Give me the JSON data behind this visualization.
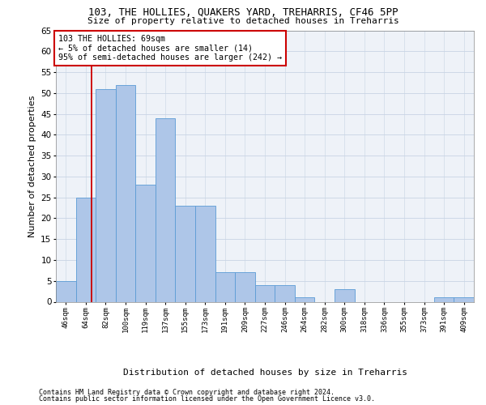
{
  "title1": "103, THE HOLLIES, QUAKERS YARD, TREHARRIS, CF46 5PP",
  "title2": "Size of property relative to detached houses in Treharris",
  "xlabel": "Distribution of detached houses by size in Treharris",
  "ylabel": "Number of detached properties",
  "categories": [
    "46sqm",
    "64sqm",
    "82sqm",
    "100sqm",
    "119sqm",
    "137sqm",
    "155sqm",
    "173sqm",
    "191sqm",
    "209sqm",
    "227sqm",
    "246sqm",
    "264sqm",
    "282sqm",
    "300sqm",
    "318sqm",
    "336sqm",
    "355sqm",
    "373sqm",
    "391sqm",
    "409sqm"
  ],
  "values": [
    5,
    25,
    51,
    52,
    28,
    44,
    23,
    23,
    7,
    7,
    4,
    4,
    1,
    0,
    3,
    0,
    0,
    0,
    0,
    1,
    1
  ],
  "bar_color": "#aec6e8",
  "bar_edge_color": "#5b9bd5",
  "annotation_label": "103 THE HOLLIES: 69sqm",
  "annotation_line1": "← 5% of detached houses are smaller (14)",
  "annotation_line2": "95% of semi-detached houses are larger (242) →",
  "annotation_box_color": "#ffffff",
  "annotation_box_edge": "#cc0000",
  "vline_color": "#cc0000",
  "footer1": "Contains HM Land Registry data © Crown copyright and database right 2024.",
  "footer2": "Contains public sector information licensed under the Open Government Licence v3.0.",
  "ylim": [
    0,
    65
  ],
  "yticks": [
    0,
    5,
    10,
    15,
    20,
    25,
    30,
    35,
    40,
    45,
    50,
    55,
    60,
    65
  ],
  "background_color": "#eef2f8",
  "grid_color": "#c8d4e4"
}
